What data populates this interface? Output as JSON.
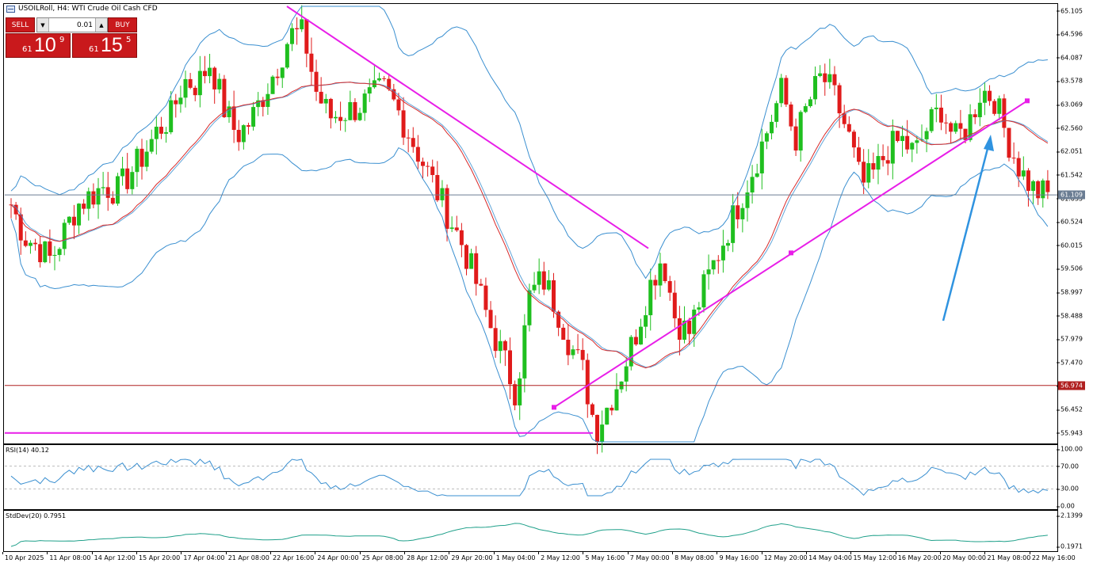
{
  "header": {
    "symbol": "USOILRoll",
    "timeframe": "H4",
    "title": "USOILRoll, H4:  WTI Crude Oil Cash CFD"
  },
  "trade_panel": {
    "sell_label": "SELL",
    "buy_label": "BUY",
    "lot_value": "0.01",
    "sell_price": {
      "pre": "61",
      "big": "10",
      "sup": "9"
    },
    "buy_price": {
      "pre": "61",
      "big": "15",
      "sup": "5"
    }
  },
  "price_axis": {
    "ticks": [
      "65.105",
      "64.596",
      "64.087",
      "63.578",
      "63.069",
      "62.560",
      "62.051",
      "61.542",
      "61.033",
      "60.524",
      "60.015",
      "59.506",
      "58.997",
      "58.488",
      "57.979",
      "57.470",
      "56.961",
      "56.452",
      "55.943"
    ],
    "range": [
      55.75,
      65.2
    ]
  },
  "price_tags": {
    "current": "61.109",
    "resistance": "56.974"
  },
  "rsi": {
    "label": "RSI(14) 40.12",
    "ticks": [
      "100.00",
      "70.00",
      "30.00",
      "0.00"
    ]
  },
  "stddev": {
    "label": "StdDev(20) 0.7951",
    "ticks": [
      "2.1399",
      "0.1971"
    ]
  },
  "time_axis": [
    "10 Apr 2025",
    "11 Apr 08:00",
    "14 Apr 12:00",
    "15 Apr 20:00",
    "17 Apr 04:00",
    "21 Apr 08:00",
    "22 Apr 16:00",
    "24 Apr 00:00",
    "25 Apr 08:00",
    "28 Apr 12:00",
    "29 Apr 20:00",
    "1 May 04:00",
    "2 May 12:00",
    "5 May 16:00",
    "7 May 00:00",
    "8 May 08:00",
    "9 May 16:00",
    "12 May 20:00",
    "14 May 04:00",
    "15 May 12:00",
    "16 May 20:00",
    "20 May 00:00",
    "21 May 08:00",
    "22 May 16:00"
  ],
  "colors": {
    "bull": "#1fbf1f",
    "bear": "#e01b1b",
    "band": "#3a8fd0",
    "ma": "#d82a2a",
    "trendline": "#e81ee8",
    "arrow": "#2f93e0",
    "level": "#b02020"
  },
  "chart_data": {
    "type": "candlestick",
    "title": "USOILRoll, H4:  WTI Crude Oil Cash CFD",
    "close_path": [
      60.9,
      60.2,
      60.0,
      59.7,
      60.3,
      60.9,
      61.1,
      61.3,
      61.2,
      61.6,
      62.0,
      62.5,
      62.8,
      63.6,
      63.5,
      64.0,
      63.0,
      62.4,
      62.7,
      63.3,
      63.9,
      64.6,
      64.6,
      63.3,
      62.8,
      62.9,
      63.0,
      63.2,
      63.4,
      63.0,
      62.4,
      61.8,
      61.2,
      60.6,
      60.0,
      59.2,
      58.3,
      57.6,
      56.8,
      58.9,
      59.3,
      58.7,
      57.9,
      57.3,
      56.0,
      56.6,
      57.3,
      58.1,
      59.1,
      59.8,
      58.4,
      58.1,
      59.0,
      59.7,
      60.4,
      61.1,
      61.8,
      62.6,
      63.4,
      62.3,
      63.1,
      63.7,
      63.2,
      62.4,
      61.3,
      61.6,
      62.1,
      62.3,
      62.0,
      62.6,
      63.0,
      62.3,
      62.6,
      63.4,
      63.2,
      62.3,
      61.6,
      61.2,
      61.1
    ],
    "levels": [
      56.974,
      55.943
    ],
    "trendlines": [
      {
        "from": [
          "22 Apr 16:00",
          65.2
        ],
        "to": [
          "7 May 00:00",
          59.9
        ]
      },
      {
        "from": [
          "2 May 12:00",
          56.5
        ],
        "to": [
          "21 May 08:00",
          63.2
        ]
      }
    ]
  }
}
